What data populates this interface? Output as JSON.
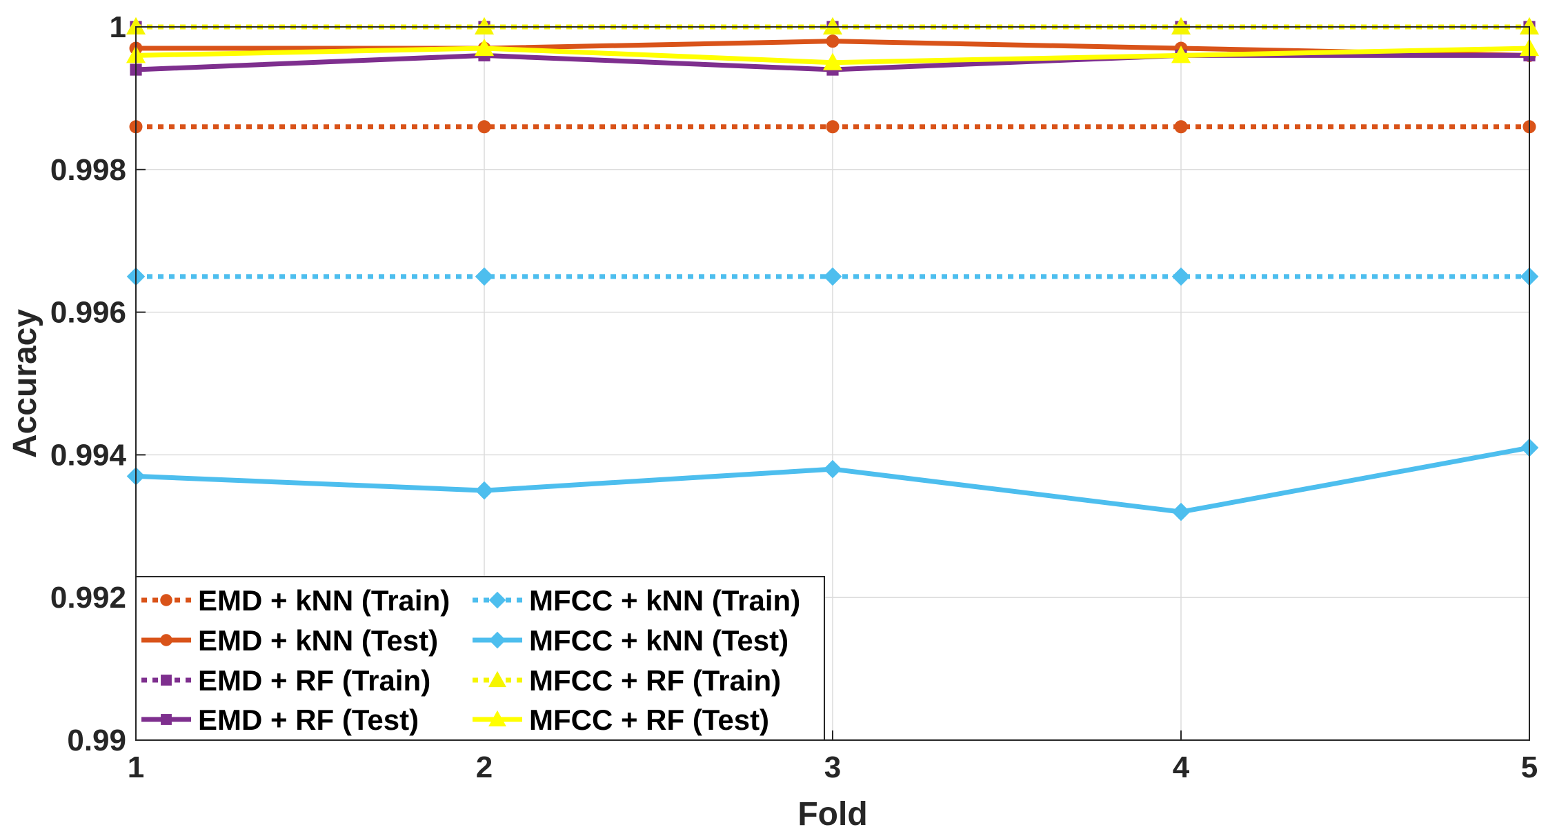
{
  "chart_data": {
    "type": "line",
    "title": "",
    "xlabel": "Fold",
    "ylabel": "Accuracy",
    "x": [
      1,
      2,
      3,
      4,
      5
    ],
    "xlim": [
      1,
      5
    ],
    "ylim": [
      0.99,
      1.0
    ],
    "xticks": [
      "1",
      "2",
      "3",
      "4",
      "5"
    ],
    "yticks": [
      "0.99",
      "0.992",
      "0.994",
      "0.996",
      "0.998",
      "1"
    ],
    "ytick_values": [
      0.99,
      0.992,
      0.994,
      0.996,
      0.998,
      1.0
    ],
    "grid": true,
    "legend_position": "bottom-left",
    "series": [
      {
        "name": "EMD + kNN (Train)",
        "values": [
          0.9986,
          0.9986,
          0.9986,
          0.9986,
          0.9986
        ],
        "color": "#D95319",
        "style": "dotted",
        "marker": "circle"
      },
      {
        "name": "EMD + kNN (Test)",
        "values": [
          0.9997,
          0.9997,
          0.9998,
          0.9997,
          0.9996
        ],
        "color": "#D95319",
        "style": "solid",
        "marker": "circle"
      },
      {
        "name": "EMD + RF (Train)",
        "values": [
          1.0,
          1.0,
          1.0,
          1.0,
          1.0
        ],
        "color": "#7E2F8E",
        "style": "dotted",
        "marker": "square"
      },
      {
        "name": "EMD + RF (Test)",
        "values": [
          0.9994,
          0.9996,
          0.9994,
          0.9996,
          0.9996
        ],
        "color": "#7E2F8E",
        "style": "solid",
        "marker": "square"
      },
      {
        "name": "MFCC + kNN (Train)",
        "values": [
          0.9965,
          0.9965,
          0.9965,
          0.9965,
          0.9965
        ],
        "color": "#4DBEEE",
        "style": "dotted",
        "marker": "diamond"
      },
      {
        "name": "MFCC + kNN (Test)",
        "values": [
          0.9937,
          0.9935,
          0.9938,
          0.9932,
          0.9941
        ],
        "color": "#4DBEEE",
        "style": "solid",
        "marker": "diamond"
      },
      {
        "name": "MFCC + RF (Train)",
        "values": [
          1.0,
          1.0,
          1.0,
          1.0,
          1.0
        ],
        "color": "#F5F500",
        "style": "dotted",
        "marker": "triangle"
      },
      {
        "name": "MFCC + RF (Test)",
        "values": [
          0.9996,
          0.9997,
          0.9995,
          0.9996,
          0.9997
        ],
        "color": "#FFFF00",
        "style": "solid",
        "marker": "triangle"
      }
    ]
  }
}
